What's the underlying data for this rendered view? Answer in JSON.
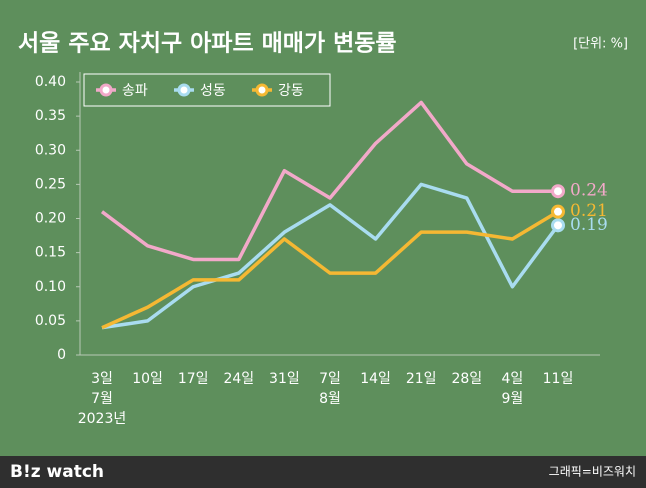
{
  "chart_data": {
    "type": "line",
    "title": "서울 주요 자치구 아파트 매매가 변동률",
    "unit": "[단위: %]",
    "categories": [
      [
        "3일",
        "7월",
        "2023년"
      ],
      [
        "10일"
      ],
      [
        "17일"
      ],
      [
        "24일"
      ],
      [
        "31일"
      ],
      [
        "7일",
        "8월"
      ],
      [
        "14일"
      ],
      [
        "21일"
      ],
      [
        "28일"
      ],
      [
        "4일",
        "9월"
      ],
      [
        "11일"
      ]
    ],
    "series": [
      {
        "name": "송파",
        "color": "#f2a9c9",
        "values": [
          0.21,
          0.16,
          0.14,
          0.14,
          0.27,
          0.23,
          0.31,
          0.37,
          0.28,
          0.24,
          0.24
        ]
      },
      {
        "name": "성동",
        "color": "#a9dcf0",
        "values": [
          0.04,
          0.05,
          0.1,
          0.12,
          0.18,
          0.22,
          0.17,
          0.25,
          0.23,
          0.1,
          0.19
        ]
      },
      {
        "name": "강동",
        "color": "#f5b833",
        "values": [
          0.04,
          0.07,
          0.11,
          0.11,
          0.17,
          0.12,
          0.12,
          0.18,
          0.18,
          0.17,
          0.21
        ]
      }
    ],
    "ylim": [
      0,
      0.4
    ],
    "yticks": [
      0,
      0.05,
      {
        "value": 0.1,
        "label": "0.10"
      },
      0.15,
      {
        "value": 0.2,
        "label": "0.20"
      },
      0.25,
      {
        "value": 0.3,
        "label": "0.30"
      },
      0.35,
      {
        "value": 0.4,
        "label": "0.40"
      }
    ],
    "grid": false,
    "legend": "upper left"
  },
  "footer": {
    "logo": "B!z watch",
    "credit": "그래픽=비즈워치"
  }
}
